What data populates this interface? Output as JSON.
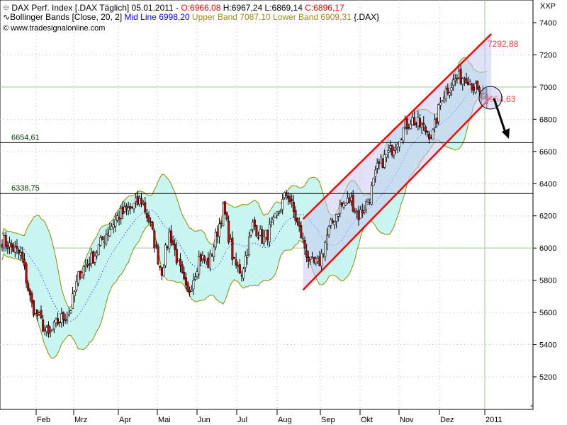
{
  "header": {
    "line1": {
      "icon": "candle-icon",
      "name": "DAX Perf. Index [.DAX  Täglich] 05.01.2011 -",
      "open": "O:6966,08",
      "high": "H:6967,24",
      "low": "L:6869,14",
      "close": "C:6896,17"
    },
    "line2": {
      "icon": "wave-icon",
      "name": "Bollinger Bands [Close, 20, 2]",
      "mid": "Mid Line 6998,20",
      "upper": "Upper Band 7087,10",
      "lower": "Lower Band 6909,31",
      "symbol": "{.DAX}"
    },
    "line3": {
      "icon": "copyright-icon",
      "text": "www.tradesignalonline.com"
    }
  },
  "chart_data": {
    "type": "candlestick",
    "title": "DAX Perf. Index [.DAX  Täglich]",
    "ylabel": "XXP",
    "ylim": [
      5000,
      7450
    ],
    "yticks": [
      "7400",
      "7200",
      "7000",
      "6800",
      "6600",
      "6400",
      "6200",
      "6000",
      "5800",
      "5600",
      "5400",
      "5200"
    ],
    "xticks": [
      "Feb",
      "Mrz",
      "Apr",
      "Mai",
      "Jun",
      "Jul",
      "Aug",
      "Sep",
      "Okt",
      "Nov",
      "Dez",
      "2011"
    ],
    "grid": true,
    "approx_closes": [
      [
        "2010-01-04",
        6050
      ],
      [
        "2010-01-12",
        6000
      ],
      [
        "2010-01-20",
        5950
      ],
      [
        "2010-01-28",
        5650
      ],
      [
        "2010-02-04",
        5550
      ],
      [
        "2010-02-10",
        5450
      ],
      [
        "2010-02-18",
        5550
      ],
      [
        "2010-02-26",
        5600
      ],
      [
        "2010-03-05",
        5850
      ],
      [
        "2010-03-15",
        5950
      ],
      [
        "2010-03-24",
        6100
      ],
      [
        "2010-04-01",
        6200
      ],
      [
        "2010-04-12",
        6250
      ],
      [
        "2010-04-20",
        6300
      ],
      [
        "2010-04-27",
        6150
      ],
      [
        "2010-05-06",
        5850
      ],
      [
        "2010-05-12",
        6100
      ],
      [
        "2010-05-20",
        5850
      ],
      [
        "2010-05-25",
        5700
      ],
      [
        "2010-06-03",
        5950
      ],
      [
        "2010-06-10",
        5900
      ],
      [
        "2010-06-21",
        6250
      ],
      [
        "2010-06-29",
        5900
      ],
      [
        "2010-07-05",
        5850
      ],
      [
        "2010-07-14",
        6150
      ],
      [
        "2010-07-22",
        6050
      ],
      [
        "2010-07-30",
        6150
      ],
      [
        "2010-08-09",
        6350
      ],
      [
        "2010-08-16",
        6150
      ],
      [
        "2010-08-25",
        5900
      ],
      [
        "2010-08-31",
        5900
      ],
      [
        "2010-09-07",
        6100
      ],
      [
        "2010-09-15",
        6250
      ],
      [
        "2010-09-24",
        6300
      ],
      [
        "2010-09-30",
        6200
      ],
      [
        "2010-10-08",
        6300
      ],
      [
        "2010-10-15",
        6500
      ],
      [
        "2010-10-25",
        6600
      ],
      [
        "2010-11-05",
        6750
      ],
      [
        "2010-11-10",
        6800
      ],
      [
        "2010-11-18",
        6750
      ],
      [
        "2010-11-26",
        6700
      ],
      [
        "2010-12-03",
        6950
      ],
      [
        "2010-12-13",
        7050
      ],
      [
        "2010-12-21",
        7070
      ],
      [
        "2010-12-30",
        6950
      ],
      [
        "2011-01-05",
        6896
      ]
    ],
    "bollinger": {
      "period": 20,
      "stddev": 2,
      "mid": 6998.2,
      "upper": 7087.1,
      "lower": 6909.31
    },
    "horizontal_levels": [
      {
        "label": "6654,61",
        "value": 6654.61
      },
      {
        "label": "6338,75",
        "value": 6338.75
      }
    ],
    "channel": {
      "upper": [
        [
          "2010-08-20",
          6180
        ],
        [
          "2011-01-07",
          7330
        ]
      ],
      "lower": [
        [
          "2010-08-20",
          5740
        ],
        [
          "2011-01-07",
          6940
        ]
      ],
      "upper_label": "7292,88",
      "lower_label": "6954,63"
    },
    "colors": {
      "up": "#ffffff",
      "down": "#e00000",
      "band_fill": "#c8f5f0",
      "band_line": "#8c8c00",
      "mid": "#0000ff",
      "channel": "#ff0000",
      "channel_fill": "#c8c8f0",
      "level": "#003300"
    }
  }
}
